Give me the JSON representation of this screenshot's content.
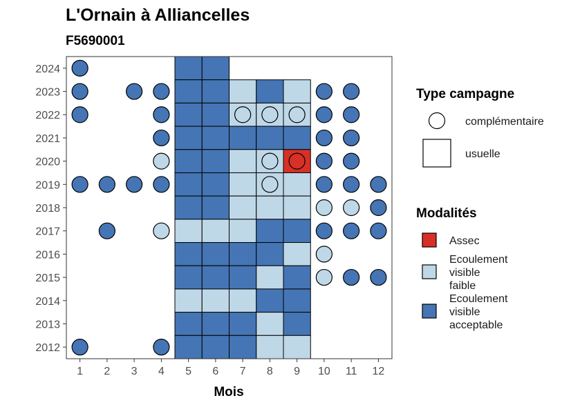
{
  "title": "L'Ornain à Alliancelles",
  "subtitle": "F5690001",
  "chart_data": {
    "type": "heatmap",
    "xlabel": "Mois",
    "ylabel": "",
    "x_ticks": [
      1,
      2,
      3,
      4,
      5,
      6,
      7,
      8,
      9,
      10,
      11,
      12
    ],
    "y_ticks": [
      2012,
      2013,
      2014,
      2015,
      2016,
      2017,
      2018,
      2019,
      2020,
      2021,
      2022,
      2023,
      2024
    ],
    "xlim": [
      0.5,
      12.5
    ],
    "ylim": [
      2011.5,
      2024.5
    ],
    "colors": {
      "Assec": "#d73027",
      "Ecoulement visible faible": "#bfd8e8",
      "Ecoulement visible acceptable": "#4575b4"
    },
    "legend_modalites": {
      "title": "Modalités",
      "items": [
        {
          "key": "Assec",
          "lines": [
            "Assec"
          ]
        },
        {
          "key": "Ecoulement visible faible",
          "lines": [
            "Ecoulement",
            "visible",
            "faible"
          ]
        },
        {
          "key": "Ecoulement visible acceptable",
          "lines": [
            "Ecoulement",
            "visible",
            "acceptable"
          ]
        }
      ]
    },
    "legend_type": {
      "title": "Type campagne",
      "items": [
        {
          "shape": "circle",
          "label": "complémentaire"
        },
        {
          "shape": "square",
          "label": "usuelle"
        }
      ]
    },
    "legend_position": "right",
    "grid": false,
    "usuelle": [
      {
        "year": 2024,
        "month": 5,
        "value": "A"
      },
      {
        "year": 2024,
        "month": 6,
        "value": "A"
      },
      {
        "year": 2023,
        "month": 5,
        "value": "A"
      },
      {
        "year": 2023,
        "month": 6,
        "value": "A"
      },
      {
        "year": 2023,
        "month": 7,
        "value": "F"
      },
      {
        "year": 2023,
        "month": 8,
        "value": "A"
      },
      {
        "year": 2023,
        "month": 9,
        "value": "F"
      },
      {
        "year": 2022,
        "month": 5,
        "value": "A"
      },
      {
        "year": 2022,
        "month": 6,
        "value": "A"
      },
      {
        "year": 2022,
        "month": 7,
        "value": "F"
      },
      {
        "year": 2022,
        "month": 8,
        "value": "F"
      },
      {
        "year": 2022,
        "month": 9,
        "value": "F"
      },
      {
        "year": 2021,
        "month": 5,
        "value": "A"
      },
      {
        "year": 2021,
        "month": 6,
        "value": "A"
      },
      {
        "year": 2021,
        "month": 7,
        "value": "A"
      },
      {
        "year": 2021,
        "month": 8,
        "value": "A"
      },
      {
        "year": 2021,
        "month": 9,
        "value": "A"
      },
      {
        "year": 2020,
        "month": 5,
        "value": "A"
      },
      {
        "year": 2020,
        "month": 6,
        "value": "A"
      },
      {
        "year": 2020,
        "month": 7,
        "value": "F"
      },
      {
        "year": 2020,
        "month": 8,
        "value": "F"
      },
      {
        "year": 2020,
        "month": 9,
        "value": "S"
      },
      {
        "year": 2019,
        "month": 5,
        "value": "A"
      },
      {
        "year": 2019,
        "month": 6,
        "value": "A"
      },
      {
        "year": 2019,
        "month": 7,
        "value": "F"
      },
      {
        "year": 2019,
        "month": 8,
        "value": "F"
      },
      {
        "year": 2019,
        "month": 9,
        "value": "F"
      },
      {
        "year": 2018,
        "month": 5,
        "value": "A"
      },
      {
        "year": 2018,
        "month": 6,
        "value": "A"
      },
      {
        "year": 2018,
        "month": 7,
        "value": "F"
      },
      {
        "year": 2018,
        "month": 8,
        "value": "F"
      },
      {
        "year": 2018,
        "month": 9,
        "value": "F"
      },
      {
        "year": 2017,
        "month": 5,
        "value": "F"
      },
      {
        "year": 2017,
        "month": 6,
        "value": "F"
      },
      {
        "year": 2017,
        "month": 7,
        "value": "F"
      },
      {
        "year": 2017,
        "month": 8,
        "value": "A"
      },
      {
        "year": 2017,
        "month": 9,
        "value": "A"
      },
      {
        "year": 2016,
        "month": 5,
        "value": "A"
      },
      {
        "year": 2016,
        "month": 6,
        "value": "A"
      },
      {
        "year": 2016,
        "month": 7,
        "value": "A"
      },
      {
        "year": 2016,
        "month": 8,
        "value": "A"
      },
      {
        "year": 2016,
        "month": 9,
        "value": "F"
      },
      {
        "year": 2015,
        "month": 5,
        "value": "A"
      },
      {
        "year": 2015,
        "month": 6,
        "value": "A"
      },
      {
        "year": 2015,
        "month": 7,
        "value": "A"
      },
      {
        "year": 2015,
        "month": 8,
        "value": "F"
      },
      {
        "year": 2015,
        "month": 9,
        "value": "A"
      },
      {
        "year": 2014,
        "month": 5,
        "value": "F"
      },
      {
        "year": 2014,
        "month": 6,
        "value": "F"
      },
      {
        "year": 2014,
        "month": 7,
        "value": "F"
      },
      {
        "year": 2014,
        "month": 8,
        "value": "A"
      },
      {
        "year": 2014,
        "month": 9,
        "value": "A"
      },
      {
        "year": 2013,
        "month": 5,
        "value": "A"
      },
      {
        "year": 2013,
        "month": 6,
        "value": "A"
      },
      {
        "year": 2013,
        "month": 7,
        "value": "A"
      },
      {
        "year": 2013,
        "month": 8,
        "value": "F"
      },
      {
        "year": 2013,
        "month": 9,
        "value": "A"
      },
      {
        "year": 2012,
        "month": 5,
        "value": "A"
      },
      {
        "year": 2012,
        "month": 6,
        "value": "A"
      },
      {
        "year": 2012,
        "month": 7,
        "value": "A"
      },
      {
        "year": 2012,
        "month": 8,
        "value": "F"
      },
      {
        "year": 2012,
        "month": 9,
        "value": "F"
      }
    ],
    "complementaire": [
      {
        "year": 2024,
        "month": 1,
        "value": "A"
      },
      {
        "year": 2023,
        "month": 1,
        "value": "A"
      },
      {
        "year": 2023,
        "month": 3,
        "value": "A"
      },
      {
        "year": 2023,
        "month": 4,
        "value": "A"
      },
      {
        "year": 2023,
        "month": 10,
        "value": "A"
      },
      {
        "year": 2023,
        "month": 11,
        "value": "A"
      },
      {
        "year": 2022,
        "month": 1,
        "value": "A"
      },
      {
        "year": 2022,
        "month": 4,
        "value": "A"
      },
      {
        "year": 2022,
        "month": 7,
        "value": "F"
      },
      {
        "year": 2022,
        "month": 8,
        "value": "F"
      },
      {
        "year": 2022,
        "month": 9,
        "value": "F"
      },
      {
        "year": 2022,
        "month": 10,
        "value": "A"
      },
      {
        "year": 2022,
        "month": 11,
        "value": "A"
      },
      {
        "year": 2021,
        "month": 4,
        "value": "A"
      },
      {
        "year": 2021,
        "month": 10,
        "value": "A"
      },
      {
        "year": 2021,
        "month": 11,
        "value": "A"
      },
      {
        "year": 2020,
        "month": 4,
        "value": "F"
      },
      {
        "year": 2020,
        "month": 8,
        "value": "F"
      },
      {
        "year": 2020,
        "month": 9,
        "value": "S"
      },
      {
        "year": 2020,
        "month": 10,
        "value": "A"
      },
      {
        "year": 2020,
        "month": 11,
        "value": "A"
      },
      {
        "year": 2019,
        "month": 1,
        "value": "A"
      },
      {
        "year": 2019,
        "month": 2,
        "value": "A"
      },
      {
        "year": 2019,
        "month": 3,
        "value": "A"
      },
      {
        "year": 2019,
        "month": 4,
        "value": "A"
      },
      {
        "year": 2019,
        "month": 8,
        "value": "F"
      },
      {
        "year": 2019,
        "month": 10,
        "value": "A"
      },
      {
        "year": 2019,
        "month": 11,
        "value": "A"
      },
      {
        "year": 2019,
        "month": 12,
        "value": "A"
      },
      {
        "year": 2018,
        "month": 10,
        "value": "F"
      },
      {
        "year": 2018,
        "month": 11,
        "value": "F"
      },
      {
        "year": 2018,
        "month": 12,
        "value": "A"
      },
      {
        "year": 2017,
        "month": 2,
        "value": "A"
      },
      {
        "year": 2017,
        "month": 4,
        "value": "F"
      },
      {
        "year": 2017,
        "month": 10,
        "value": "A"
      },
      {
        "year": 2017,
        "month": 11,
        "value": "A"
      },
      {
        "year": 2017,
        "month": 12,
        "value": "A"
      },
      {
        "year": 2016,
        "month": 10,
        "value": "F"
      },
      {
        "year": 2015,
        "month": 10,
        "value": "F"
      },
      {
        "year": 2015,
        "month": 11,
        "value": "A"
      },
      {
        "year": 2015,
        "month": 12,
        "value": "A"
      },
      {
        "year": 2012,
        "month": 1,
        "value": "A"
      },
      {
        "year": 2012,
        "month": 4,
        "value": "A"
      }
    ]
  }
}
